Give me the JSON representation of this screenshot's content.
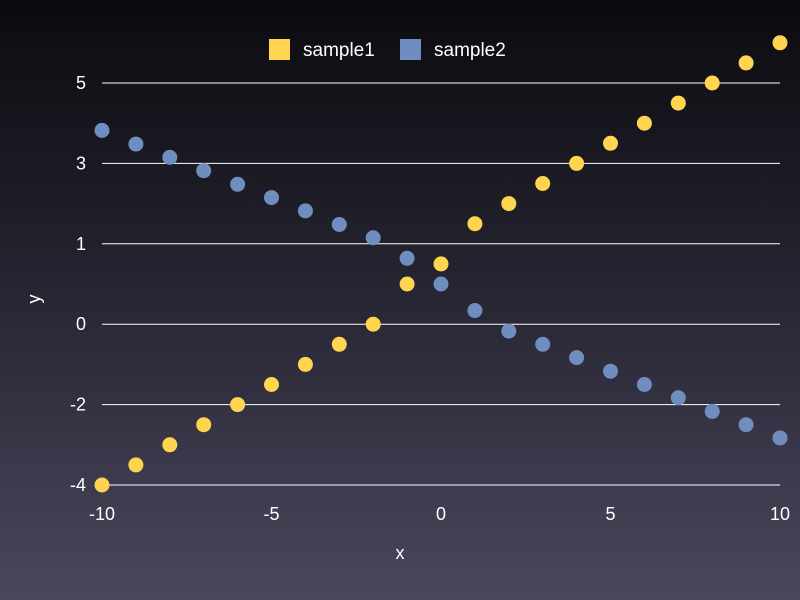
{
  "chart_data": {
    "type": "scatter",
    "title": "",
    "xlabel": "x",
    "ylabel": "y",
    "xlim": [
      -10,
      10
    ],
    "x_ticks": [
      -10,
      -5,
      0,
      5,
      10
    ],
    "y_ticks": [
      -4,
      -2,
      0,
      1,
      3,
      5
    ],
    "grid": "horizontal",
    "legend_position": "top-center",
    "x": [
      -10,
      -9,
      -8,
      -7,
      -6,
      -5,
      -4,
      -3,
      -2,
      -1,
      0,
      1,
      2,
      3,
      4,
      5,
      6,
      7,
      8,
      9,
      10
    ],
    "series": [
      {
        "name": "sample1",
        "color": "#ffd54f",
        "values": [
          -4,
          -3.5,
          -3,
          -2.5,
          -2,
          -1.5,
          -1,
          -0.5,
          0,
          0.5,
          0.75,
          1.5,
          2,
          2.5,
          3,
          3.5,
          4,
          4.5,
          5,
          5.5,
          6
        ]
      },
      {
        "name": "sample2",
        "color": "#6f8ebf",
        "values": [
          3.82,
          3.48,
          3.15,
          2.82,
          2.48,
          2.15,
          1.82,
          1.48,
          1.15,
          0.82,
          0.5,
          0.17,
          -0.17,
          -0.5,
          -0.83,
          -1.17,
          -1.5,
          -1.83,
          -2.17,
          -2.5,
          -2.83
        ]
      }
    ]
  }
}
